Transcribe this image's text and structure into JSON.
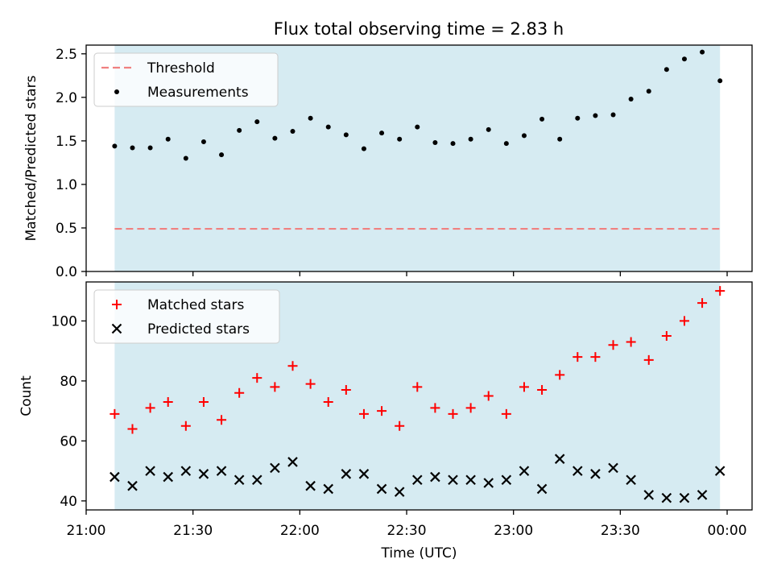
{
  "title": "Flux total observing time = 2.83 h",
  "colors": {
    "shade": "#add8e6",
    "threshold": "#f08080",
    "matched": "#ff0000",
    "predicted": "#000000",
    "measurement": "#000000"
  },
  "chart_data": [
    {
      "type": "scatter",
      "panel": "top",
      "ylabel": "Matched/Predicted stars",
      "ylim": [
        0,
        2.6
      ],
      "yticks": [
        0.0,
        0.5,
        1.0,
        1.5,
        2.0,
        2.5
      ],
      "ytick_labels": [
        "0.0",
        "0.5",
        "1.0",
        "1.5",
        "2.0",
        "2.5"
      ],
      "shaded_span": [
        "21:08",
        "23:58"
      ],
      "legend_placement": "top-left",
      "series": [
        {
          "name": "Threshold",
          "kind": "dashed-line",
          "x": [
            "21:08",
            "23:58"
          ],
          "y": [
            0.49,
            0.49
          ]
        },
        {
          "name": "Measurements",
          "kind": "dot",
          "x": [
            "21:08",
            "21:13",
            "21:18",
            "21:23",
            "21:28",
            "21:33",
            "21:38",
            "21:43",
            "21:48",
            "21:53",
            "21:58",
            "22:03",
            "22:08",
            "22:13",
            "22:18",
            "22:23",
            "22:28",
            "22:33",
            "22:38",
            "22:43",
            "22:48",
            "22:53",
            "22:58",
            "23:03",
            "23:08",
            "23:13",
            "23:18",
            "23:23",
            "23:28",
            "23:33",
            "23:38",
            "23:43",
            "23:48",
            "23:53",
            "23:58"
          ],
          "y": [
            1.44,
            1.42,
            1.42,
            1.52,
            1.3,
            1.49,
            1.34,
            1.62,
            1.72,
            1.53,
            1.61,
            1.76,
            1.66,
            1.57,
            1.41,
            1.59,
            1.52,
            1.66,
            1.48,
            1.47,
            1.52,
            1.63,
            1.47,
            1.56,
            1.75,
            1.52,
            1.76,
            1.79,
            1.8,
            1.98,
            2.07,
            2.32,
            2.44,
            2.52,
            2.19
          ]
        }
      ]
    },
    {
      "type": "scatter",
      "panel": "bottom",
      "xlabel": "Time (UTC)",
      "ylabel": "Count",
      "ylim": [
        37,
        113
      ],
      "yticks": [
        40,
        60,
        80,
        100
      ],
      "ytick_labels": [
        "40",
        "60",
        "80",
        "100"
      ],
      "xlim": [
        "21:00",
        "00:07"
      ],
      "xtick_labels": [
        "21:00",
        "21:30",
        "22:00",
        "22:30",
        "23:00",
        "23:30",
        "00:00"
      ],
      "shaded_span": [
        "21:08",
        "23:58"
      ],
      "legend_placement": "top-left",
      "series": [
        {
          "name": "Matched stars",
          "kind": "plus",
          "x": [
            "21:08",
            "21:13",
            "21:18",
            "21:23",
            "21:28",
            "21:33",
            "21:38",
            "21:43",
            "21:48",
            "21:53",
            "21:58",
            "22:03",
            "22:08",
            "22:13",
            "22:18",
            "22:23",
            "22:28",
            "22:33",
            "22:38",
            "22:43",
            "22:48",
            "22:53",
            "22:58",
            "23:03",
            "23:08",
            "23:13",
            "23:18",
            "23:23",
            "23:28",
            "23:33",
            "23:38",
            "23:43",
            "23:48",
            "23:53",
            "23:58"
          ],
          "y": [
            69,
            64,
            71,
            73,
            65,
            73,
            67,
            76,
            81,
            78,
            85,
            79,
            73,
            77,
            69,
            70,
            65,
            78,
            71,
            69,
            71,
            75,
            69,
            78,
            77,
            82,
            88,
            88,
            92,
            93,
            87,
            95,
            100,
            106,
            110
          ]
        },
        {
          "name": "Predicted stars",
          "kind": "x",
          "x": [
            "21:08",
            "21:13",
            "21:18",
            "21:23",
            "21:28",
            "21:33",
            "21:38",
            "21:43",
            "21:48",
            "21:53",
            "21:58",
            "22:03",
            "22:08",
            "22:13",
            "22:18",
            "22:23",
            "22:28",
            "22:33",
            "22:38",
            "22:43",
            "22:48",
            "22:53",
            "22:58",
            "23:03",
            "23:08",
            "23:13",
            "23:18",
            "23:23",
            "23:28",
            "23:33",
            "23:38",
            "23:43",
            "23:48",
            "23:53",
            "23:58"
          ],
          "y": [
            48,
            45,
            50,
            48,
            50,
            49,
            50,
            47,
            47,
            51,
            53,
            45,
            44,
            49,
            49,
            44,
            43,
            47,
            48,
            47,
            47,
            46,
            47,
            50,
            44,
            54,
            50,
            49,
            51,
            47,
            42,
            41,
            41,
            42,
            50
          ]
        }
      ]
    }
  ]
}
